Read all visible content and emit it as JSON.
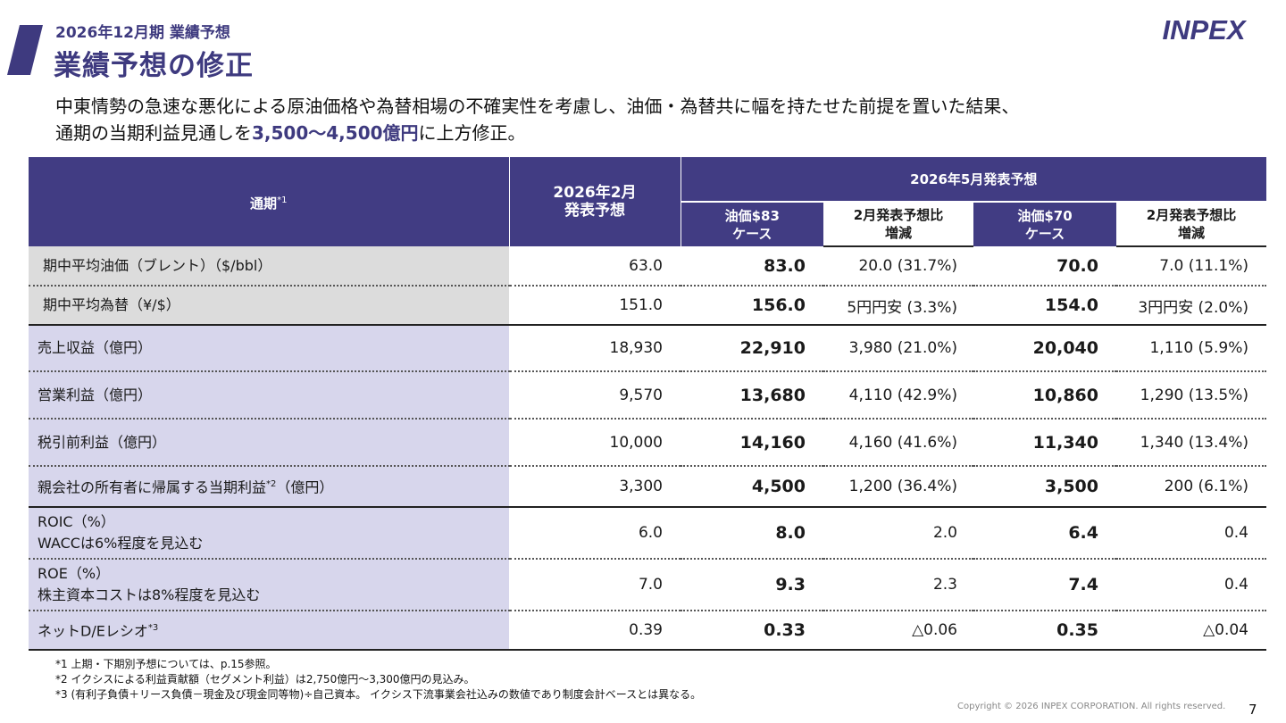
{
  "header": {
    "subtitle": "2026年12月期  業績予想",
    "title": "業績予想の修正",
    "logo_text": "INPEX",
    "accent_color": "#3e3a7f"
  },
  "lead": {
    "line1": "中東情勢の急速な悪化による原油価格や為替相場の不確実性を考慮し、油価・為替共に幅を持たせた前提を置いた結果、",
    "line2_pre": "通期の当期利益見通しを",
    "line2_highlight": "3,500～4,500億円",
    "line2_post": "に上方修正。"
  },
  "table": {
    "header": {
      "period_label": "通期",
      "period_sup": "*1",
      "feb_line1": "2026年2月",
      "feb_line2": "発表予想",
      "may_label": "2026年5月発表予想",
      "case1_line1": "油価$83",
      "case1_line2": "ケース",
      "diff1_line1": "2月発表予想比",
      "diff1_line2": "増減",
      "case2_line1": "油価$70",
      "case2_line2": "ケース",
      "diff2_line1": "2月発表予想比",
      "diff2_line2": "増減"
    },
    "rows": [
      {
        "label": "期中平均油価（ブレント）（$/bbl）",
        "feb": "63.0",
        "v83": "83.0",
        "d83": "20.0 (31.7%)",
        "v70": "70.0",
        "d70": "7.0 (11.1%)"
      },
      {
        "label": "期中平均為替（¥/$）",
        "feb": "151.0",
        "v83": "156.0",
        "d83": "5円円安 (3.3%)",
        "v70": "154.0",
        "d70": "3円円安 (2.0%)"
      },
      {
        "label": "売上収益（億円）",
        "feb": "18,930",
        "v83": "22,910",
        "d83": "3,980 (21.0%)",
        "v70": "20,040",
        "d70": "1,110 (5.9%)"
      },
      {
        "label": "営業利益（億円）",
        "feb": "9,570",
        "v83": "13,680",
        "d83": "4,110 (42.9%)",
        "v70": "10,860",
        "d70": "1,290 (13.5%)"
      },
      {
        "label": "税引前利益（億円）",
        "feb": "10,000",
        "v83": "14,160",
        "d83": "4,160 (41.6%)",
        "v70": "11,340",
        "d70": "1,340 (13.4%)"
      },
      {
        "label_pre": "親会社の所有者に帰属する当期利益",
        "label_sup": "*2",
        "label_post": "（億円）",
        "feb": "3,300",
        "v83": "4,500",
        "d83": "1,200 (36.4%)",
        "v70": "3,500",
        "d70": "200 (6.1%)"
      },
      {
        "label_line1": "ROIC（%）",
        "label_line2": "WACCは6%程度を見込む",
        "feb": "6.0",
        "v83": "8.0",
        "d83": "2.0",
        "v70": "6.4",
        "d70": "0.4"
      },
      {
        "label_line1": "ROE（%）",
        "label_line2": "株主資本コストは8%程度を見込む",
        "feb": "7.0",
        "v83": "9.3",
        "d83": "2.3",
        "v70": "7.4",
        "d70": "0.4"
      },
      {
        "label_pre": "ネットD/Eレシオ",
        "label_sup": "*3",
        "feb": "0.39",
        "v83": "0.33",
        "d83": "△0.06",
        "v70": "0.35",
        "d70": "△0.04"
      }
    ]
  },
  "notes": [
    "*1  上期・下期別予想については、p.15参照。",
    "*2  イクシスによる利益貢献額（セグメント利益）は2,750億円～3,300億円の見込み。",
    "*3  (有利子負債＋リース負債－現金及び現金同等物)÷自己資本。 イクシス下流事業会社込みの数値であり制度会計ベースとは異なる。"
  ],
  "footer": {
    "copyright": "Copyright © 2026 INPEX CORPORATION. All rights reserved.",
    "page": "7"
  }
}
